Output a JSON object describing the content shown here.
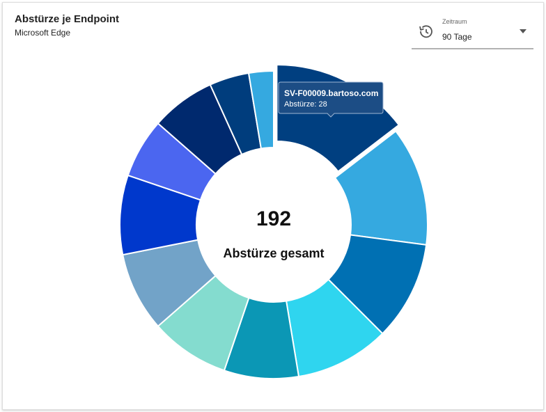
{
  "chart_data": {
    "type": "donut",
    "title": "Abstürze je Endpoint",
    "subtitle": "Microsoft Edge",
    "total": 192,
    "total_label": "Abstürze gesamt",
    "categories": [
      "SV-F00009.bartoso.com",
      null,
      null,
      null,
      null,
      null,
      null,
      null,
      null,
      null,
      null,
      null
    ],
    "values": [
      28,
      24,
      20,
      19,
      15,
      16,
      16,
      16,
      12,
      13,
      8,
      5
    ],
    "colors": [
      "#003f80",
      "#35a9e0",
      "#0070b3",
      "#2fd5ef",
      "#0b97b5",
      "#84dccf",
      "#72a3c8",
      "#0038cc",
      "#4b66f0",
      "#00296e",
      "#003d7d",
      "#35a9e0"
    ],
    "tooltip_value_label": "Abstürze:"
  },
  "filter": {
    "label": "Zeitraum",
    "value": "90 Tage"
  }
}
